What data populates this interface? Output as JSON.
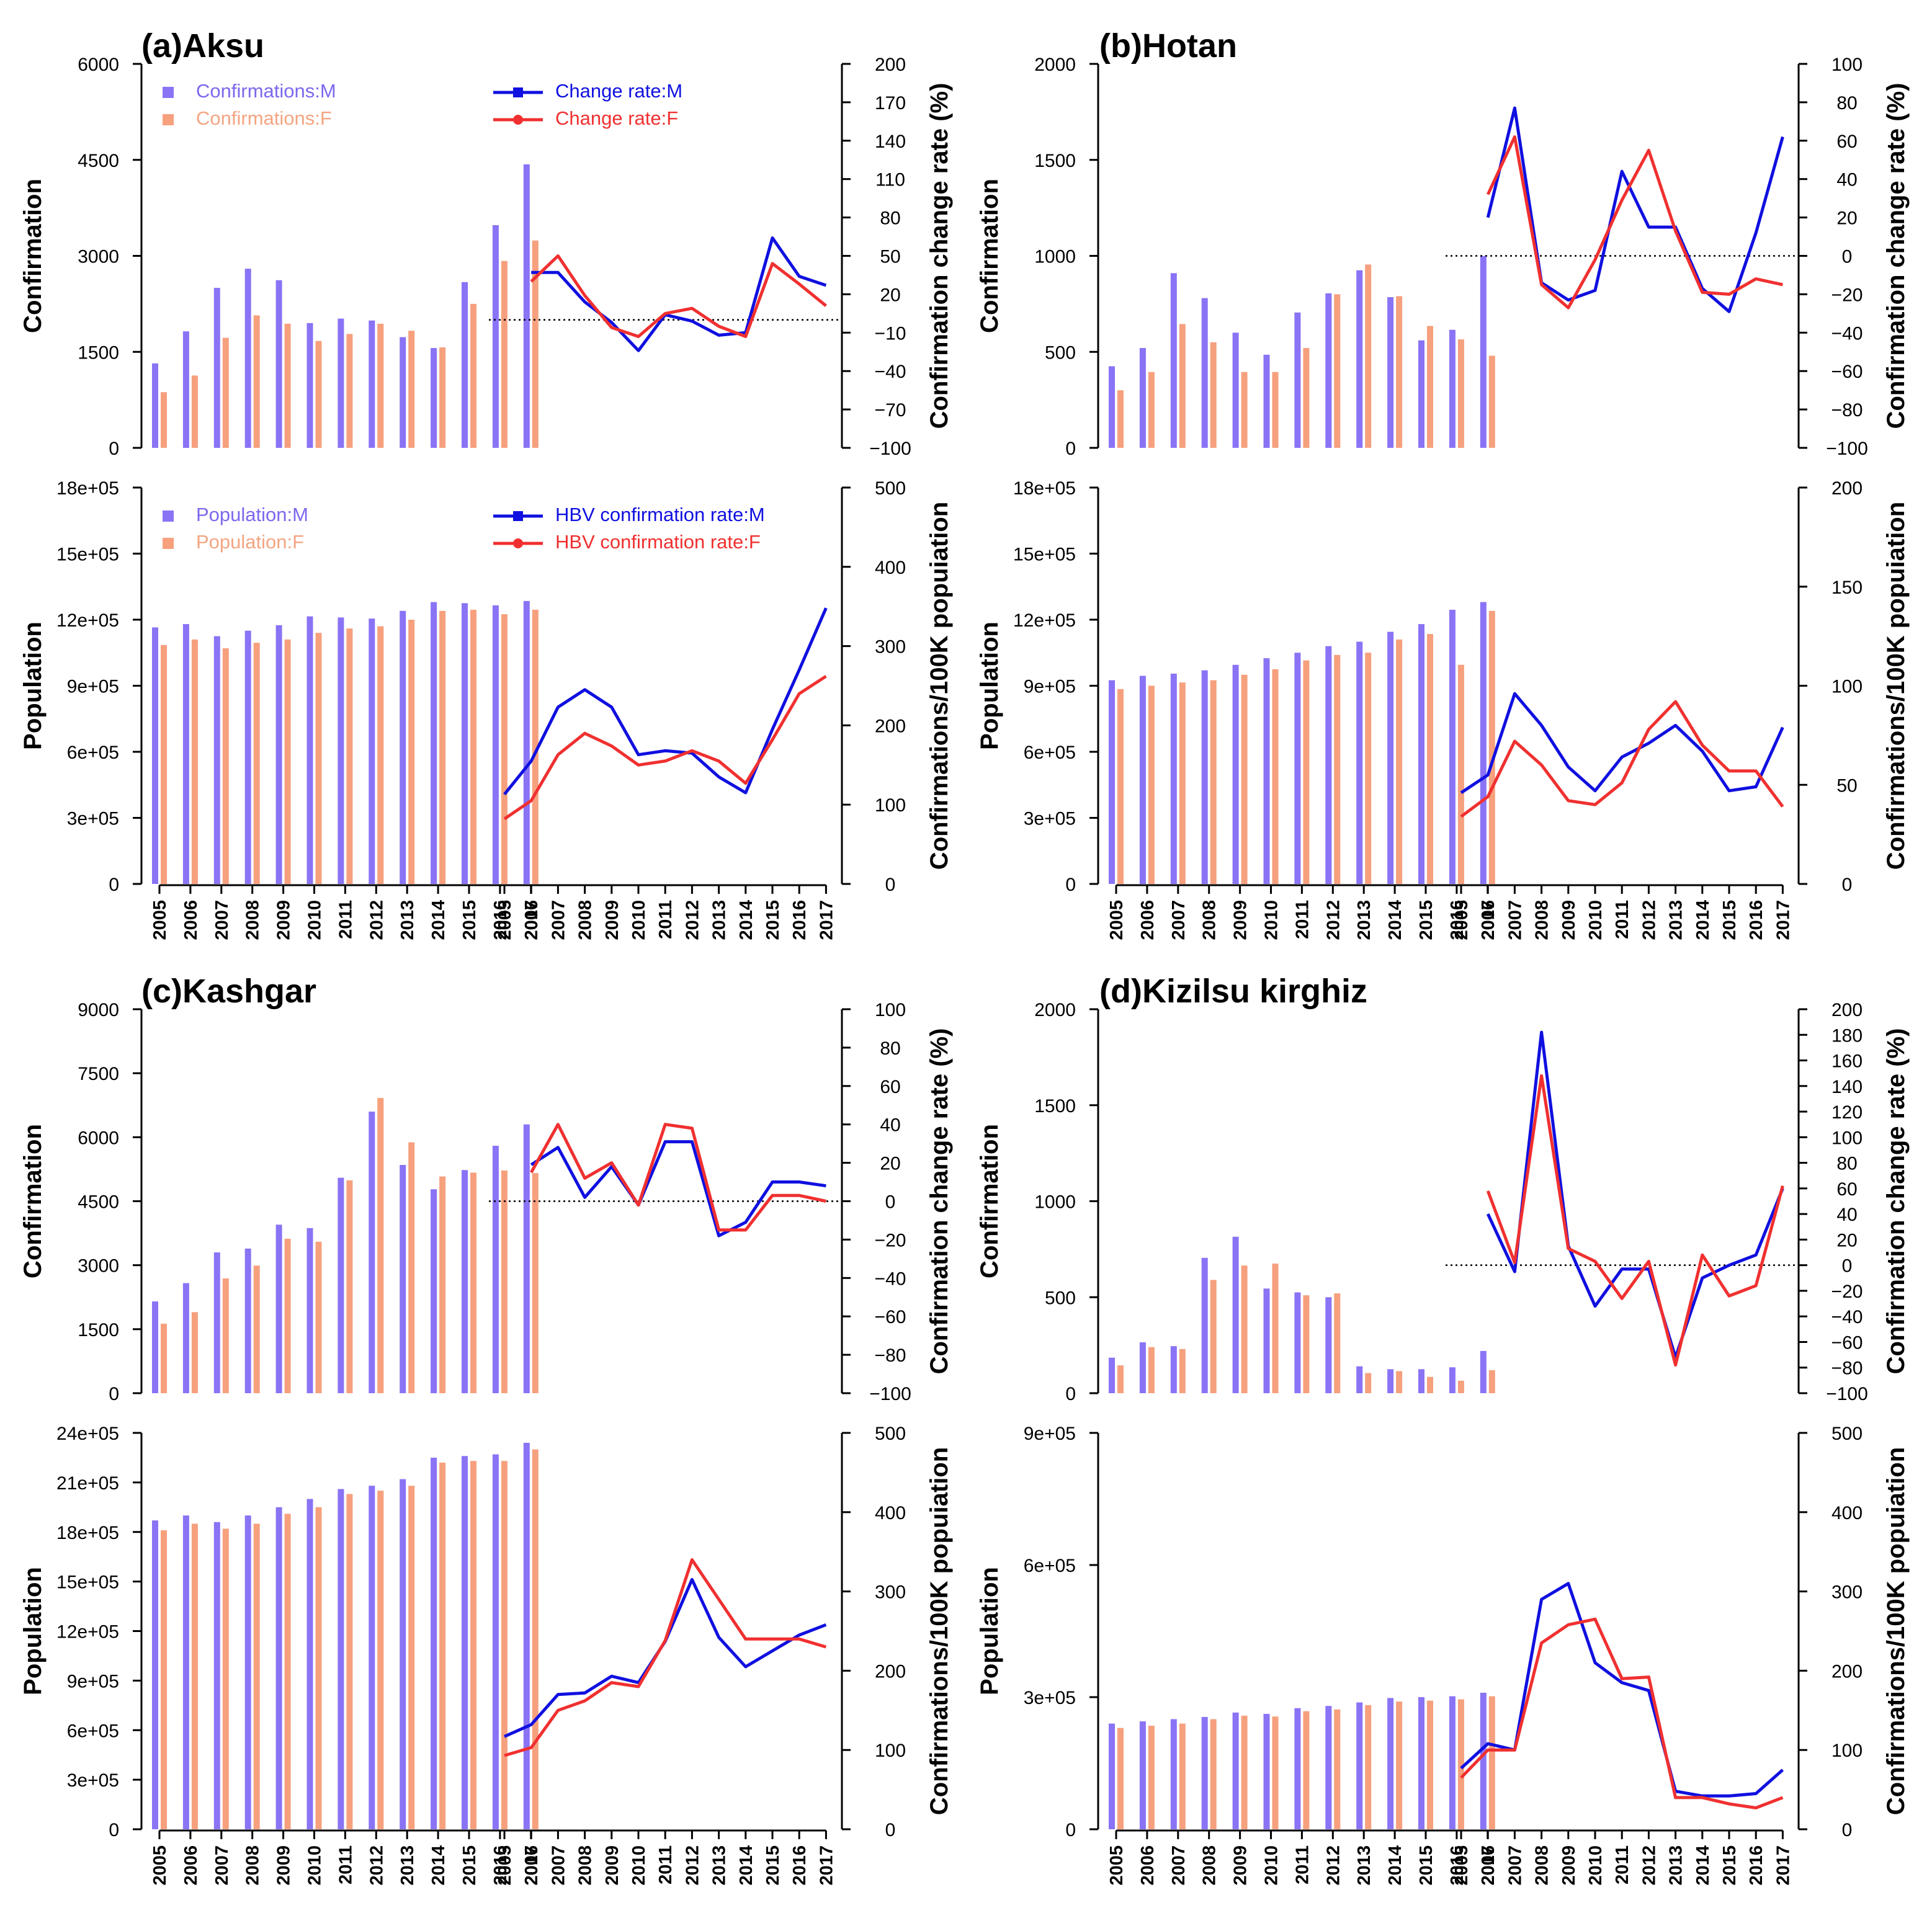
{
  "years": [
    "2005",
    "2006",
    "2007",
    "2008",
    "2009",
    "2010",
    "2011",
    "2012",
    "2013",
    "2014",
    "2015",
    "2016",
    "2017"
  ],
  "colors": {
    "bar_m": "#8a73f5",
    "bar_f": "#f6a07e",
    "line_m": "#1010e0",
    "line_f": "#f03030",
    "label_m": "#7b68ee",
    "label_f": "#f4a582"
  },
  "legends": {
    "confirm_bar_m": "Confirmations:M",
    "confirm_bar_f": "Confirmations:F",
    "change_m": "Change rate:M",
    "change_f": "Change rate:F",
    "pop_bar_m": "Population:M",
    "pop_bar_f": "Population:F",
    "rate_m": "HBV confirmation rate:M",
    "rate_f": "HBV confirmation rate:F"
  },
  "axis_labels": {
    "confirmation": "Confirmation",
    "change_rate": "Confirmation change rate (%)",
    "population": "Population",
    "per_100k": "Confirmations/100K popuiation"
  },
  "chart_data": [
    {
      "panel": "a",
      "title": "(a)Aksu",
      "type": "bar+line",
      "confirmations": {
        "yticks": [
          "0",
          "1500",
          "3000",
          "4500",
          "6000"
        ],
        "ylim": [
          0,
          6000
        ],
        "male": [
          1320,
          1820,
          2500,
          2800,
          2620,
          1950,
          2020,
          1990,
          1730,
          1560,
          2590,
          3480,
          4430
        ],
        "female": [
          870,
          1130,
          1720,
          2070,
          1940,
          1670,
          1780,
          1940,
          1830,
          1570,
          2250,
          2920,
          3240
        ]
      },
      "change_rate": {
        "yticks": [
          "−100",
          "−70",
          "−40",
          "−10",
          "20",
          "50",
          "80",
          "110",
          "140",
          "170",
          "200"
        ],
        "ylim": [
          -100,
          200
        ],
        "zero_line": 0,
        "male": [
          null,
          37,
          37,
          14,
          -2,
          -24,
          4,
          -1,
          -12,
          -10,
          64,
          34,
          27
        ],
        "female": [
          null,
          30,
          50,
          19,
          -6,
          -13,
          5,
          9,
          -5,
          -13,
          44,
          28,
          11
        ]
      },
      "population": {
        "yticks": [
          "0",
          "3e+05",
          "6e+05",
          "9e+05",
          "12e+05",
          "15e+05",
          "18e+05"
        ],
        "ylim": [
          0,
          1800000
        ],
        "male": [
          1165000,
          1180000,
          1125000,
          1150000,
          1175000,
          1215000,
          1210000,
          1205000,
          1240000,
          1280000,
          1275000,
          1265000,
          1285000
        ],
        "female": [
          1085000,
          1110000,
          1070000,
          1095000,
          1110000,
          1140000,
          1160000,
          1170000,
          1200000,
          1240000,
          1245000,
          1225000,
          1245000
        ]
      },
      "confirmation_rate": {
        "yticks": [
          "0",
          "100",
          "200",
          "300",
          "400",
          "500"
        ],
        "ylim": [
          0,
          500
        ],
        "male": [
          113,
          155,
          223,
          245,
          223,
          163,
          168,
          165,
          135,
          115,
          195,
          270,
          348
        ],
        "female": [
          82,
          105,
          163,
          190,
          174,
          150,
          155,
          168,
          155,
          127,
          182,
          240,
          262
        ]
      }
    },
    {
      "panel": "b",
      "title": "(b)Hotan",
      "type": "bar+line",
      "confirmations": {
        "yticks": [
          "0",
          "500",
          "1000",
          "1500",
          "2000"
        ],
        "ylim": [
          0,
          2000
        ],
        "male": [
          425,
          520,
          910,
          780,
          600,
          485,
          705,
          805,
          925,
          785,
          560,
          615,
          1000
        ],
        "female": [
          300,
          395,
          645,
          550,
          395,
          395,
          520,
          800,
          955,
          790,
          635,
          565,
          480
        ]
      },
      "change_rate": {
        "yticks": [
          "−100",
          "−80",
          "−60",
          "−40",
          "−20",
          "0",
          "20",
          "40",
          "60",
          "80",
          "100"
        ],
        "ylim": [
          -100,
          100
        ],
        "zero_line": 0,
        "male": [
          null,
          20,
          77,
          -14,
          -23,
          -18,
          44,
          15,
          15,
          -17,
          -29,
          12,
          62
        ],
        "female": [
          null,
          32,
          62,
          -15,
          -27,
          -2,
          29,
          55,
          13,
          -19,
          -20,
          -12,
          -15
        ]
      },
      "population": {
        "yticks": [
          "0",
          "3e+05",
          "6e+05",
          "9e+05",
          "12e+05",
          "15e+05",
          "18e+05"
        ],
        "ylim": [
          0,
          1800000
        ],
        "male": [
          925000,
          945000,
          955000,
          970000,
          995000,
          1025000,
          1050000,
          1080000,
          1100000,
          1145000,
          1180000,
          1245000,
          1280000
        ],
        "female": [
          885000,
          900000,
          915000,
          925000,
          950000,
          975000,
          1015000,
          1040000,
          1050000,
          1110000,
          1135000,
          995000,
          1240000
        ]
      },
      "confirmation_rate": {
        "yticks": [
          "0",
          "50",
          "100",
          "150",
          "200"
        ],
        "ylim": [
          0,
          200
        ],
        "male": [
          46,
          55,
          96,
          80,
          59,
          47,
          64,
          71,
          80,
          67,
          47,
          49,
          79
        ],
        "female": [
          34,
          44,
          72,
          60,
          42,
          40,
          51,
          78,
          92,
          70,
          57,
          57,
          39
        ]
      }
    },
    {
      "panel": "c",
      "title": "(c)Kashgar",
      "type": "bar+line",
      "confirmations": {
        "yticks": [
          "0",
          "1500",
          "3000",
          "4500",
          "6000",
          "7500",
          "9000"
        ],
        "ylim": [
          0,
          9000
        ],
        "male": [
          2150,
          2580,
          3300,
          3390,
          3950,
          3870,
          5050,
          6600,
          5350,
          4780,
          5230,
          5800,
          6300
        ],
        "female": [
          1630,
          1900,
          2690,
          2990,
          3620,
          3550,
          4990,
          6920,
          5880,
          5080,
          5170,
          5220,
          5160
        ]
      },
      "change_rate": {
        "yticks": [
          "−100",
          "−80",
          "−60",
          "−40",
          "−20",
          "0",
          "20",
          "40",
          "60",
          "80",
          "100"
        ],
        "ylim": [
          -100,
          100
        ],
        "zero_line": 0,
        "male": [
          null,
          19,
          28,
          2,
          18,
          -2,
          31,
          31,
          -18,
          -11,
          10,
          10,
          8
        ],
        "female": [
          null,
          15,
          40,
          12,
          20,
          -2,
          40,
          38,
          -15,
          -15,
          3,
          3,
          0
        ]
      },
      "population": {
        "yticks": [
          "0",
          "3e+05",
          "6e+05",
          "9e+05",
          "12e+05",
          "15e+05",
          "18e+05",
          "21e+05",
          "24e+05"
        ],
        "ylim": [
          0,
          2400000
        ],
        "male": [
          1870000,
          1900000,
          1860000,
          1900000,
          1950000,
          2000000,
          2060000,
          2080000,
          2120000,
          2250000,
          2260000,
          2270000,
          2340000
        ],
        "female": [
          1810000,
          1850000,
          1820000,
          1850000,
          1910000,
          1950000,
          2030000,
          2050000,
          2080000,
          2220000,
          2230000,
          2230000,
          2300000
        ]
      },
      "confirmation_rate": {
        "yticks": [
          "0",
          "100",
          "200",
          "300",
          "400",
          "500"
        ],
        "ylim": [
          0,
          500
        ],
        "male": [
          117,
          132,
          170,
          172,
          193,
          185,
          237,
          315,
          242,
          205,
          225,
          245,
          258
        ],
        "female": [
          93,
          103,
          150,
          162,
          185,
          180,
          238,
          340,
          290,
          240,
          240,
          240,
          230
        ]
      }
    },
    {
      "panel": "d",
      "title": "(d)Kizilsu kirghiz",
      "type": "bar+line",
      "confirmations": {
        "yticks": [
          "0",
          "500",
          "1000",
          "1500",
          "2000"
        ],
        "ylim": [
          0,
          2000
        ],
        "male": [
          185,
          265,
          245,
          705,
          815,
          545,
          525,
          500,
          140,
          125,
          125,
          135,
          220
        ],
        "female": [
          145,
          240,
          230,
          590,
          665,
          675,
          510,
          520,
          105,
          115,
          85,
          65,
          120
        ]
      },
      "change_rate": {
        "yticks": [
          "−100",
          "−80",
          "−60",
          "−40",
          "−20",
          "0",
          "20",
          "40",
          "60",
          "80",
          "100",
          "120",
          "140",
          "160",
          "180",
          "200"
        ],
        "ylim": [
          -100,
          200
        ],
        "zero_line": 0,
        "male": [
          null,
          40,
          -5,
          182,
          15,
          -32,
          -3,
          -3,
          -72,
          -10,
          0,
          8,
          60
        ],
        "female": [
          null,
          58,
          2,
          148,
          13,
          3,
          -26,
          3,
          -78,
          8,
          -24,
          -16,
          62
        ]
      },
      "population": {
        "yticks": [
          "0",
          "3e+05",
          "6e+05",
          "9e+05"
        ],
        "ylim": [
          0,
          900000
        ],
        "male": [
          240000,
          245000,
          250000,
          255000,
          265000,
          262000,
          275000,
          280000,
          288000,
          298000,
          300000,
          302000,
          310000
        ],
        "female": [
          230000,
          235000,
          240000,
          250000,
          258000,
          256000,
          268000,
          272000,
          282000,
          290000,
          292000,
          295000,
          302000
        ]
      },
      "confirmation_rate": {
        "yticks": [
          "0",
          "100",
          "200",
          "300",
          "400",
          "500"
        ],
        "ylim": [
          0,
          500
        ],
        "male": [
          77,
          108,
          100,
          290,
          310,
          210,
          185,
          175,
          48,
          42,
          42,
          45,
          75
        ],
        "female": [
          65,
          100,
          100,
          235,
          258,
          265,
          190,
          192,
          40,
          40,
          32,
          27,
          40
        ]
      }
    }
  ]
}
